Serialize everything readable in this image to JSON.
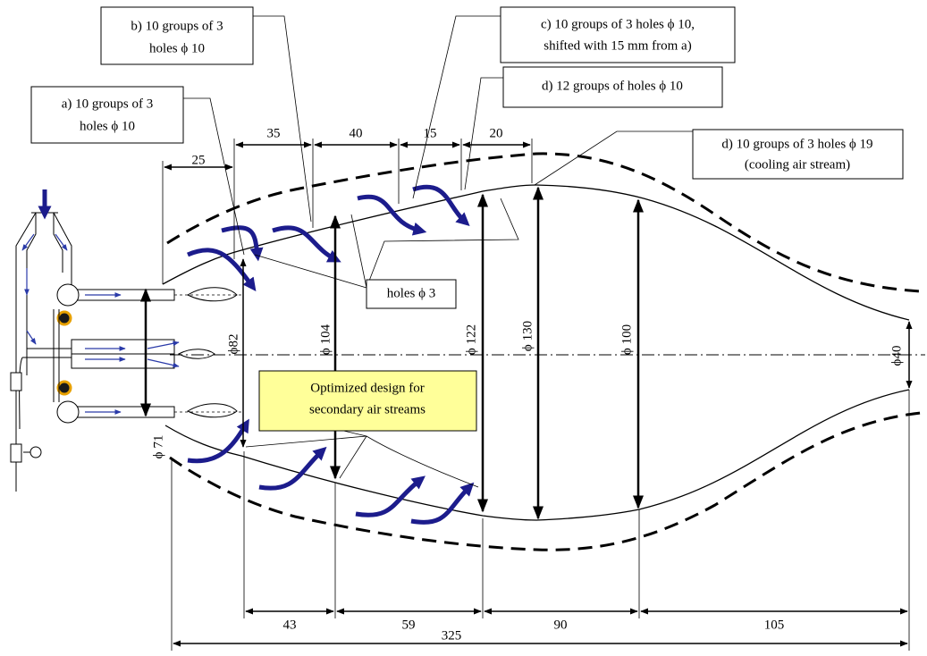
{
  "callouts": [
    {
      "lines": [
        "b) 10 groups of 3",
        "holes ϕ 10"
      ]
    },
    {
      "lines": [
        "c) 10 groups of 3 holes ϕ 10,",
        "shifted with 15 mm from a)"
      ]
    },
    {
      "lines": [
        "d) 12 groups of holes ϕ 10"
      ]
    },
    {
      "lines": [
        "a) 10 groups of 3",
        "holes ϕ 10"
      ]
    },
    {
      "lines": [
        "d) 10 groups of 3 holes ϕ 19",
        "(cooling air stream)"
      ]
    },
    {
      "lines": [
        "holes ϕ 3"
      ]
    }
  ],
  "note": {
    "lines": [
      "Optimized design for",
      "secondary air streams"
    ]
  },
  "dimensions": {
    "top": [
      25,
      35,
      40,
      15,
      20
    ],
    "bottom": [
      43,
      59,
      90,
      105
    ],
    "overall": 325
  },
  "diameters": [
    "ϕ 71",
    "ϕ82",
    "ϕ 104",
    "ϕ 122",
    "ϕ 130",
    "ϕ 100",
    "ϕ40"
  ]
}
